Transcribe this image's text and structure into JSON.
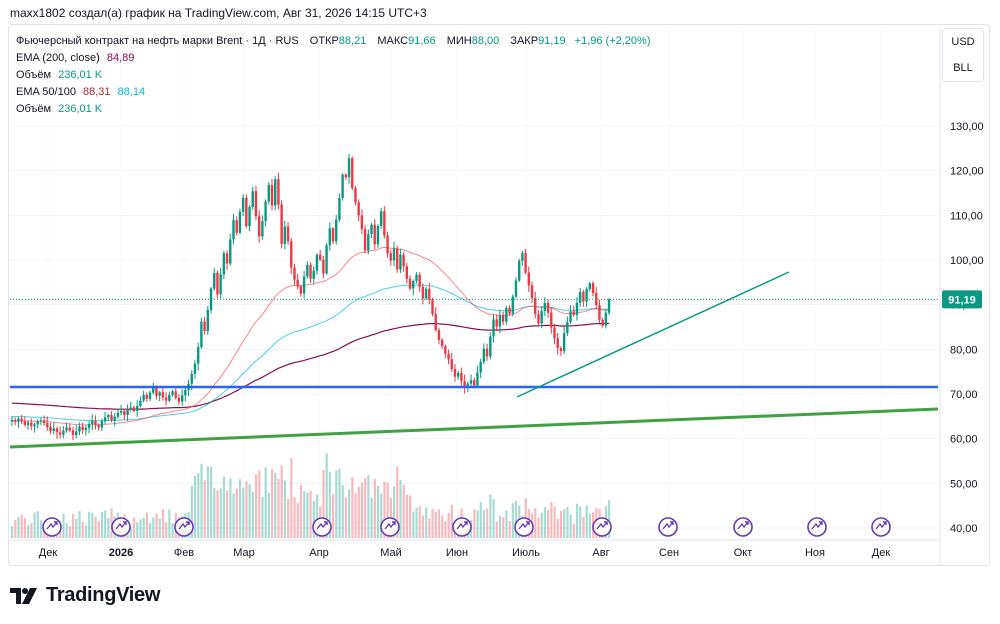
{
  "header": {
    "text": "maxx1802 создал(а) график на TradingView.com, Авг 31, 2026 14:15 UTC+3"
  },
  "legend": {
    "title": "Фьючерсный контракт на нефть марки Brent · 1Д · RUS",
    "ohlc": [
      {
        "label": "ОТКР",
        "value": "88,21"
      },
      {
        "label": "МАКС",
        "value": "91,66"
      },
      {
        "label": "МИН",
        "value": "88,00"
      },
      {
        "label": "ЗАКР",
        "value": "91,19"
      }
    ],
    "change": "+1,96 (+2,20%)",
    "ema200_label": "EMA (200, close)",
    "ema200_value": "84,89",
    "volume1_label": "Объём",
    "volume1_value": "236,01 K",
    "ema50_100_label": "EMA 50/100",
    "ema50_value": "88,31",
    "ema100_value": "88,14",
    "volume2_label": "Объём",
    "volume2_value": "236,01 K"
  },
  "currency": {
    "primary": "USD",
    "unit": "BLL"
  },
  "footer": {
    "brand": "TradingView"
  },
  "colors": {
    "up": "#089981",
    "down": "#f23645",
    "ema200": "#880e4f",
    "ema50": "#f7525f",
    "ema100": "#00bcd4",
    "support_blue": "#2962ff",
    "trend_green": "#43a047",
    "trend_teal": "#089981",
    "event_icon": "#673ab7"
  },
  "chart_data": {
    "type": "candlestick",
    "price_axis_ticks": [
      "130,00",
      "120,00",
      "110,00",
      "100,00",
      "90,00",
      "80,00",
      "70,00",
      "60,00",
      "50,00",
      "40,00"
    ],
    "ylim": [
      37,
      138
    ],
    "time_axis_labels": [
      "Дек",
      "2026",
      "Фев",
      "Мар",
      "Апр",
      "Май",
      "Июн",
      "Июль",
      "Авг",
      "Сен",
      "Окт",
      "Ноя",
      "Дек"
    ],
    "current_price_label": "91,19",
    "current_price": 91.19,
    "close_series": [
      64.2,
      63.8,
      64.5,
      63.9,
      63.1,
      63.6,
      62.8,
      63.2,
      63.9,
      64.1,
      63.5,
      62.6,
      61.7,
      62.3,
      61.4,
      60.9,
      61.8,
      62.5,
      61.9,
      60.8,
      61.6,
      62.7,
      61.9,
      62.4,
      63.3,
      64.0,
      63.1,
      62.5,
      63.9,
      64.8,
      65.3,
      64.1,
      64.9,
      65.8,
      66.2,
      65.3,
      66.6,
      67.0,
      66.2,
      67.3,
      68.5,
      69.8,
      68.9,
      70.3,
      71.5,
      69.6,
      70.4,
      69.2,
      68.5,
      69.8,
      70.6,
      69.1,
      68.3,
      69.7,
      70.9,
      72.3,
      74.5,
      76.8,
      80.5,
      86.2,
      84.1,
      88.8,
      93.6,
      97.1,
      92.3,
      96.8,
      101.5,
      99.2,
      104.6,
      108.9,
      106.1,
      110.8,
      113.9,
      107.6,
      111.9,
      115.4,
      109.8,
      105.3,
      108.7,
      113.1,
      116.8,
      112.2,
      118.1,
      112.4,
      103.6,
      107.5,
      104.2,
      98.3,
      95.6,
      94.1,
      92.5,
      96.3,
      98.9,
      95.8,
      97.6,
      101.2,
      100.1,
      97.0,
      103.3,
      107.1,
      104.2,
      109.0,
      113.9,
      119.1,
      118.5,
      122.8,
      116.1,
      112.9,
      110.0,
      106.9,
      102.1,
      105.8,
      107.9,
      103.5,
      107.6,
      110.9,
      105.5,
      101.5,
      99.9,
      102.6,
      97.9,
      101.2,
      98.6,
      95.8,
      93.6,
      95.3,
      96.7,
      94.0,
      91.4,
      93.5,
      91.2,
      87.9,
      84.3,
      82.1,
      80.7,
      79.0,
      77.8,
      75.6,
      73.9,
      74.7,
      72.9,
      71.5,
      72.3,
      73.1,
      71.9,
      74.8,
      77.2,
      80.1,
      78.4,
      82.9,
      86.7,
      85.1,
      87.6,
      86.2,
      89.3,
      88.0,
      91.8,
      95.4,
      99.8,
      101.6,
      97.2,
      94.3,
      91.5,
      87.9,
      85.8,
      88.6,
      90.4,
      88.2,
      84.9,
      82.5,
      80.3,
      79.6,
      83.6,
      86.1,
      88.5,
      87.7,
      90.4,
      92.9,
      90.7,
      93.5,
      94.8,
      92.6,
      89.9,
      86.6,
      85.3,
      88.2,
      91.19
    ]
  }
}
